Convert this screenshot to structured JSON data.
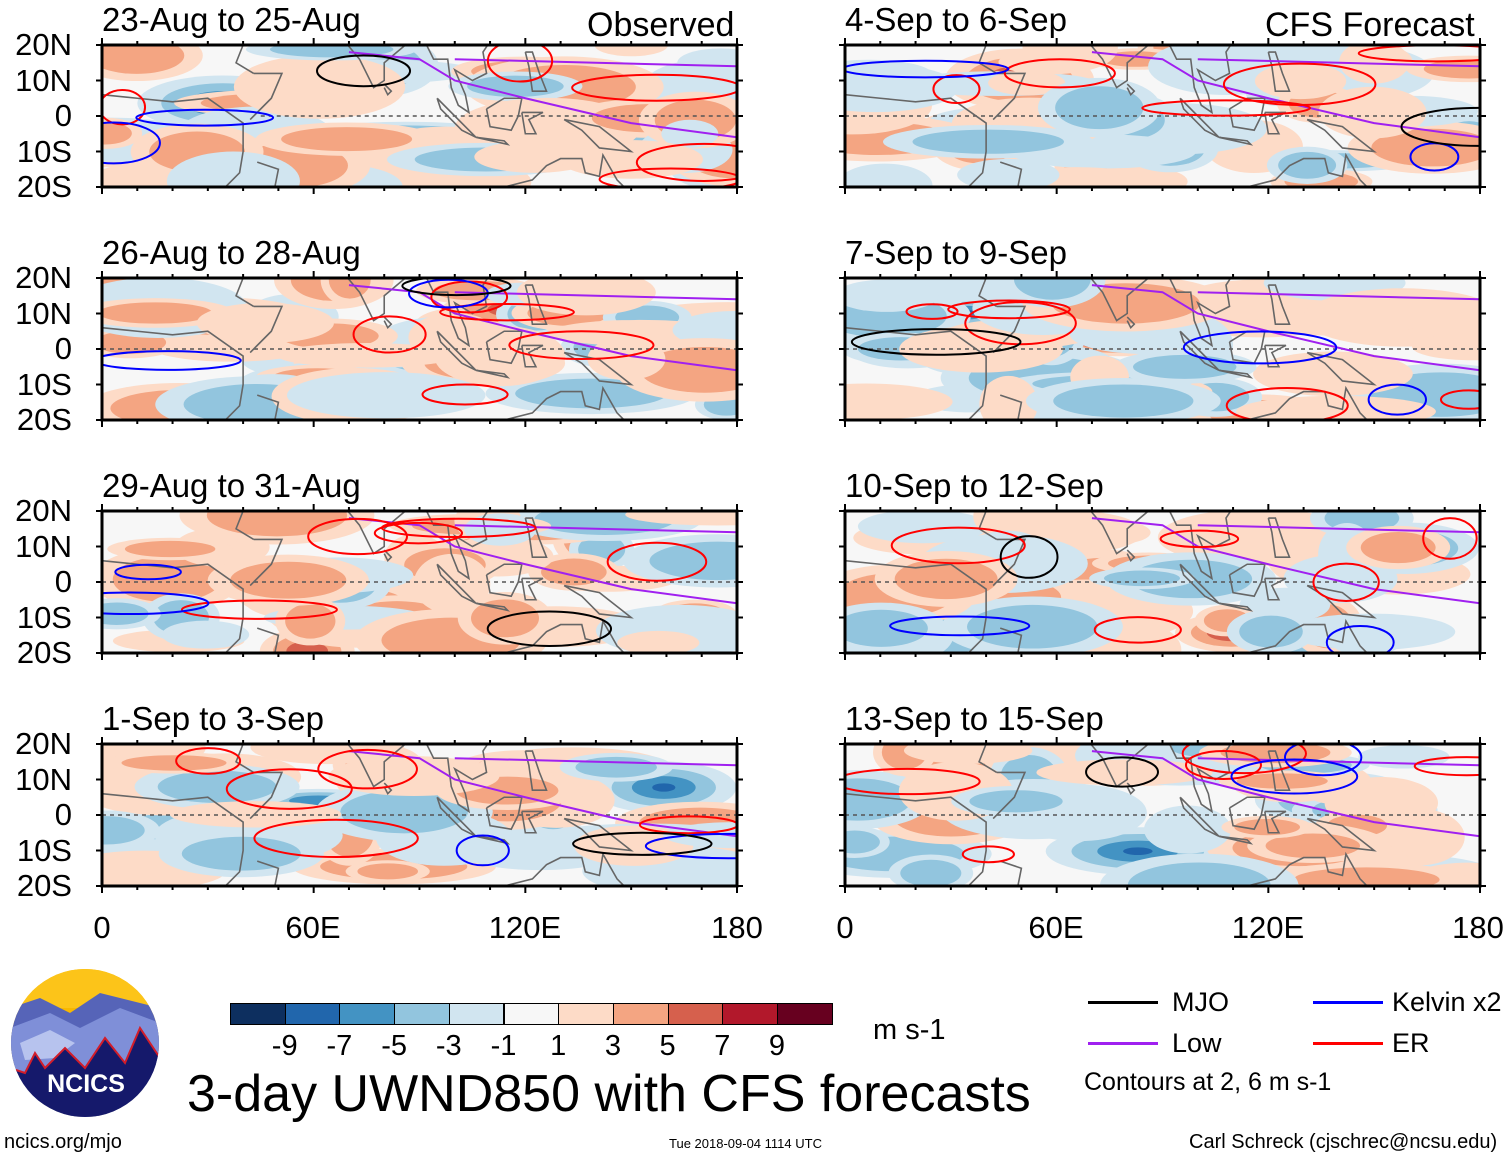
{
  "chart_data": {
    "type": "heatmap",
    "title": "3-day UWND850 with CFS forecasts",
    "variable": "UWND850",
    "units": "m s-1",
    "xlim": [
      0,
      180
    ],
    "ylim": [
      -20,
      20
    ],
    "x_ticks": [
      "0",
      "60E",
      "120E",
      "180"
    ],
    "y_ticks": [
      "20N",
      "10N",
      "0",
      "10S",
      "20S"
    ],
    "columns": [
      {
        "label": "Observed",
        "panels": [
          "23-Aug to 25-Aug",
          "26-Aug to 28-Aug",
          "29-Aug to 31-Aug",
          "1-Sep to 3-Sep"
        ]
      },
      {
        "label": "CFS Forecast",
        "panels": [
          "4-Sep to 6-Sep",
          "7-Sep to 9-Sep",
          "10-Sep to 12-Sep",
          "13-Sep to 15-Sep"
        ]
      }
    ],
    "colorbar": {
      "labels": [
        "-9",
        "-7",
        "-5",
        "-3",
        "-1",
        "1",
        "3",
        "5",
        "7",
        "9"
      ],
      "colors": [
        "#0d2f5f",
        "#2166ac",
        "#4393c3",
        "#92c5de",
        "#d1e5f0",
        "#f7f7f7",
        "#fddbc7",
        "#f4a582",
        "#d6604d",
        "#b2182b",
        "#67001f"
      ],
      "units": "m s-1"
    },
    "legend": [
      {
        "label": "MJO",
        "color": "#000000"
      },
      {
        "label": "Kelvin x2",
        "color": "#0000ff"
      },
      {
        "label": "Low",
        "color": "#a020f0"
      },
      {
        "label": "ER",
        "color": "#ff0000"
      }
    ],
    "contour_note": "Contours at 2, 6 m s-1"
  },
  "footer": {
    "logo_text": "NCICS",
    "url": "ncics.org/mjo",
    "timestamp": "Tue 2018-09-04 1114 UTC",
    "author": "Carl Schreck (cjschrec@ncsu.edu)"
  }
}
